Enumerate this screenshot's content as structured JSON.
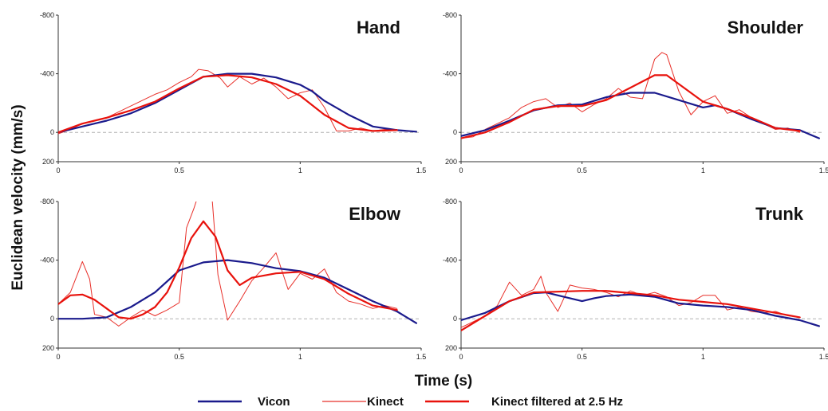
{
  "colors": {
    "vicon": "#1a1a8c",
    "kinect": "#e8302a",
    "filtered": "#e8120c",
    "zero_line": "#b0b0b0",
    "axis": "#333333"
  },
  "ylabel": "Euclidean velocity (mm/s)",
  "xlabel": "Time (s)",
  "legend": [
    {
      "name": "Vicon",
      "color": "#1a1a8c",
      "weight": "thick"
    },
    {
      "name": "Kinect",
      "color": "#e8302a",
      "weight": "thin"
    },
    {
      "name": "Kinect filtered at 2.5 Hz",
      "color": "#e8120c",
      "weight": "thick"
    }
  ],
  "chart_data": [
    {
      "type": "line",
      "title": "Hand",
      "xlim": [
        0,
        1.5
      ],
      "ylim": [
        200,
        -800
      ],
      "xticks": [
        "0",
        "0.5",
        "1",
        "1.5"
      ],
      "yticks": [
        "-800",
        "-400",
        "0",
        "200"
      ],
      "series": [
        {
          "name": "Vicon",
          "x": [
            0,
            0.1,
            0.2,
            0.3,
            0.4,
            0.5,
            0.6,
            0.7,
            0.8,
            0.9,
            1.0,
            1.05,
            1.1,
            1.2,
            1.3,
            1.4,
            1.48
          ],
          "y": [
            0,
            -40,
            -80,
            -130,
            -200,
            -290,
            -380,
            -400,
            -400,
            -375,
            -325,
            -280,
            -215,
            -120,
            -40,
            -15,
            -5
          ]
        },
        {
          "name": "Kinect",
          "x": [
            0,
            0.05,
            0.1,
            0.15,
            0.2,
            0.25,
            0.3,
            0.35,
            0.4,
            0.45,
            0.5,
            0.55,
            0.58,
            0.62,
            0.67,
            0.7,
            0.75,
            0.8,
            0.85,
            0.9,
            0.95,
            1.0,
            1.05,
            1.1,
            1.15,
            1.2,
            1.25,
            1.3,
            1.35,
            1.4
          ],
          "y": [
            10,
            -20,
            -60,
            -80,
            -100,
            -140,
            -180,
            -220,
            -260,
            -290,
            -340,
            -380,
            -430,
            -420,
            -370,
            -310,
            -380,
            -330,
            -370,
            -310,
            -230,
            -270,
            -290,
            -170,
            -10,
            -10,
            -30,
            -10,
            -20,
            -20
          ]
        },
        {
          "name": "Kinect filtered at 2.5 Hz",
          "x": [
            0,
            0.1,
            0.2,
            0.3,
            0.4,
            0.5,
            0.6,
            0.7,
            0.8,
            0.9,
            1.0,
            1.1,
            1.2,
            1.3,
            1.4
          ],
          "y": [
            0,
            -60,
            -100,
            -150,
            -210,
            -300,
            -380,
            -390,
            -375,
            -330,
            -250,
            -120,
            -30,
            -10,
            -15
          ]
        }
      ]
    },
    {
      "type": "line",
      "title": "Shoulder",
      "xlim": [
        0,
        1.5
      ],
      "ylim": [
        200,
        -800
      ],
      "xticks": [
        "0",
        "0.5",
        "1",
        "1.5"
      ],
      "yticks": [
        "-800",
        "-400",
        "0",
        "200"
      ],
      "series": [
        {
          "name": "Vicon",
          "x": [
            0,
            0.1,
            0.2,
            0.3,
            0.4,
            0.5,
            0.6,
            0.7,
            0.8,
            0.9,
            1.0,
            1.05,
            1.1,
            1.2,
            1.3,
            1.4,
            1.45,
            1.48
          ],
          "y": [
            25,
            -15,
            -80,
            -150,
            -185,
            -190,
            -240,
            -270,
            -270,
            -220,
            -170,
            -185,
            -160,
            -90,
            -30,
            -15,
            20,
            40
          ]
        },
        {
          "name": "Kinect",
          "x": [
            0,
            0.05,
            0.1,
            0.15,
            0.2,
            0.25,
            0.3,
            0.35,
            0.4,
            0.45,
            0.5,
            0.55,
            0.6,
            0.65,
            0.7,
            0.75,
            0.8,
            0.83,
            0.85,
            0.9,
            0.95,
            1.0,
            1.05,
            1.1,
            1.15,
            1.2,
            1.25,
            1.3,
            1.35,
            1.4
          ],
          "y": [
            40,
            30,
            -20,
            -60,
            -100,
            -170,
            -210,
            -230,
            -170,
            -200,
            -140,
            -190,
            -230,
            -300,
            -240,
            -230,
            -500,
            -545,
            -530,
            -280,
            -120,
            -210,
            -250,
            -130,
            -155,
            -100,
            -60,
            -20,
            -30,
            0
          ]
        },
        {
          "name": "Kinect filtered at 2.5 Hz",
          "x": [
            0,
            0.1,
            0.2,
            0.3,
            0.4,
            0.5,
            0.6,
            0.7,
            0.8,
            0.85,
            0.9,
            1.0,
            1.1,
            1.2,
            1.3,
            1.4
          ],
          "y": [
            40,
            0,
            -70,
            -155,
            -180,
            -180,
            -220,
            -305,
            -390,
            -390,
            -330,
            -210,
            -160,
            -100,
            -30,
            -10
          ]
        }
      ]
    },
    {
      "type": "line",
      "title": "Elbow",
      "xlim": [
        0,
        1.5
      ],
      "ylim": [
        200,
        -800
      ],
      "xticks": [
        "0",
        "0.5",
        "1",
        "1.5"
      ],
      "yticks": [
        "-800",
        "-400",
        "0",
        "200"
      ],
      "series": [
        {
          "name": "Vicon",
          "x": [
            0,
            0.1,
            0.2,
            0.3,
            0.4,
            0.5,
            0.6,
            0.7,
            0.8,
            0.9,
            1.0,
            1.1,
            1.2,
            1.3,
            1.4,
            1.48
          ],
          "y": [
            0,
            0,
            -10,
            -80,
            -180,
            -330,
            -385,
            -400,
            -380,
            -345,
            -325,
            -280,
            -200,
            -120,
            -50,
            30
          ]
        },
        {
          "name": "Kinect",
          "x": [
            0,
            0.05,
            0.1,
            0.13,
            0.15,
            0.2,
            0.25,
            0.3,
            0.35,
            0.4,
            0.45,
            0.5,
            0.53,
            0.56,
            0.6,
            0.63,
            0.66,
            0.7,
            0.75,
            0.8,
            0.85,
            0.9,
            0.95,
            1.0,
            1.05,
            1.1,
            1.15,
            1.2,
            1.25,
            1.3,
            1.35,
            1.4
          ],
          "y": [
            -100,
            -180,
            -390,
            -270,
            -30,
            -10,
            50,
            -10,
            -60,
            -20,
            -60,
            -110,
            -620,
            -750,
            -950,
            -950,
            -300,
            10,
            -120,
            -260,
            -350,
            -450,
            -200,
            -310,
            -270,
            -340,
            -180,
            -120,
            -100,
            -70,
            -90,
            -70
          ]
        },
        {
          "name": "Kinect filtered at 2.5 Hz",
          "x": [
            0,
            0.05,
            0.1,
            0.15,
            0.2,
            0.25,
            0.3,
            0.35,
            0.4,
            0.45,
            0.5,
            0.55,
            0.6,
            0.65,
            0.7,
            0.75,
            0.8,
            0.9,
            1.0,
            1.1,
            1.2,
            1.3,
            1.4
          ],
          "y": [
            -100,
            -160,
            -165,
            -130,
            -70,
            -10,
            0,
            -30,
            -80,
            -180,
            -350,
            -550,
            -665,
            -560,
            -330,
            -230,
            -280,
            -310,
            -320,
            -270,
            -170,
            -90,
            -60
          ]
        }
      ]
    },
    {
      "type": "line",
      "title": "Trunk",
      "xlim": [
        0,
        1.5
      ],
      "ylim": [
        200,
        -800
      ],
      "xticks": [
        "0",
        "0.5",
        "1",
        "1.5"
      ],
      "yticks": [
        "-800",
        "-400",
        "0",
        "200"
      ],
      "series": [
        {
          "name": "Vicon",
          "x": [
            0,
            0.1,
            0.2,
            0.3,
            0.35,
            0.4,
            0.5,
            0.55,
            0.6,
            0.7,
            0.8,
            0.9,
            1.0,
            1.1,
            1.2,
            1.3,
            1.4,
            1.48
          ],
          "y": [
            10,
            -40,
            -120,
            -175,
            -180,
            -160,
            -120,
            -140,
            -155,
            -165,
            -150,
            -105,
            -90,
            -80,
            -60,
            -20,
            10,
            50
          ]
        },
        {
          "name": "Kinect",
          "x": [
            0,
            0.05,
            0.1,
            0.15,
            0.2,
            0.25,
            0.3,
            0.33,
            0.35,
            0.4,
            0.45,
            0.5,
            0.55,
            0.6,
            0.65,
            0.7,
            0.75,
            0.8,
            0.85,
            0.9,
            0.95,
            1.0,
            1.05,
            1.1,
            1.15,
            1.2,
            1.25,
            1.3,
            1.35,
            1.4
          ],
          "y": [
            60,
            20,
            -20,
            -90,
            -250,
            -160,
            -200,
            -290,
            -180,
            -50,
            -230,
            -210,
            -200,
            -180,
            -150,
            -190,
            -160,
            -180,
            -150,
            -90,
            -110,
            -160,
            -160,
            -60,
            -80,
            -50,
            -40,
            -50,
            -20,
            -10
          ]
        },
        {
          "name": "Kinect filtered at 2.5 Hz",
          "x": [
            0,
            0.1,
            0.2,
            0.3,
            0.4,
            0.5,
            0.6,
            0.7,
            0.8,
            0.9,
            1.0,
            1.1,
            1.2,
            1.3,
            1.4
          ],
          "y": [
            80,
            -20,
            -120,
            -180,
            -185,
            -190,
            -190,
            -175,
            -160,
            -130,
            -115,
            -100,
            -70,
            -40,
            -10
          ]
        }
      ]
    }
  ]
}
